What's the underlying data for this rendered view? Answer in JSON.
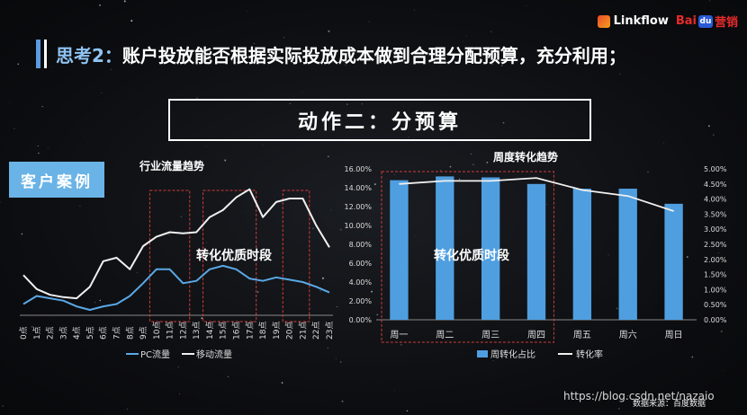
{
  "header": {
    "prefix": "思考2：",
    "title": "账户投放能否根据实际投放成本做到合理分配预算，充分利用；"
  },
  "logos": {
    "linkflow": "Linkflow",
    "baidu_left": "Bai",
    "baidu_mid": "du",
    "baidu_right": "营销"
  },
  "action_box": {
    "text": "动作二：分预算"
  },
  "case_label": "客户案例",
  "colors": {
    "accent": "#6ab3e6",
    "pc_line": "#5aa8e6",
    "mobile_line": "#f0f0f0",
    "bar": "#4f9fe0",
    "highlight_box": "#d23b3b"
  },
  "chart_data": [
    {
      "type": "line",
      "title": "行业流量趋势",
      "annotation": "转化优质时段",
      "categories": [
        "0点",
        "1点",
        "2点",
        "3点",
        "4点",
        "5点",
        "6点",
        "7点",
        "8点",
        "9点",
        "10点",
        "11点",
        "12点",
        "13点",
        "14点",
        "15点",
        "16点",
        "17点",
        "18点",
        "19点",
        "20点",
        "21点",
        "22点",
        "23点"
      ],
      "series": [
        {
          "name": "PC流量",
          "values": [
            0.5,
            1.2,
            1.0,
            0.8,
            0.3,
            0.0,
            0.3,
            0.5,
            1.2,
            2.3,
            3.5,
            3.5,
            2.3,
            2.5,
            3.5,
            3.8,
            3.5,
            2.7,
            2.5,
            2.8,
            2.6,
            2.4,
            2.0,
            1.5
          ]
        },
        {
          "name": "移动流量",
          "values": [
            3.0,
            1.8,
            1.3,
            1.1,
            1.0,
            2.0,
            4.2,
            4.5,
            3.5,
            5.5,
            6.3,
            6.7,
            6.6,
            6.7,
            8.0,
            8.6,
            9.7,
            10.4,
            8.0,
            9.3,
            9.6,
            9.6,
            7.3,
            5.4
          ]
        }
      ],
      "highlight_ranges": [
        [
          10,
          12
        ],
        [
          14,
          17
        ],
        [
          20,
          21
        ]
      ],
      "legend_position": "bottom-left"
    },
    {
      "type": "bar",
      "title": "周度转化趋势",
      "annotation": "转化优质时段",
      "categories": [
        "周一",
        "周二",
        "周三",
        "周四",
        "周五",
        "周六",
        "周日"
      ],
      "series": [
        {
          "name": "周转化占比",
          "type": "bar",
          "axis": "left",
          "values": [
            14.8,
            15.2,
            15.1,
            14.4,
            13.9,
            13.9,
            12.3
          ]
        },
        {
          "name": "转化率",
          "type": "line",
          "axis": "right",
          "values": [
            4.5,
            4.6,
            4.6,
            4.7,
            4.3,
            4.1,
            3.6
          ]
        }
      ],
      "y_left": {
        "ylim": [
          0,
          16
        ],
        "ticks": [
          "0.00%",
          "2.00%",
          "4.00%",
          "6.00%",
          "8.00%",
          "10.00%",
          "12.00%",
          "14.00%",
          "16.00%"
        ]
      },
      "y_right": {
        "ylim": [
          0,
          5
        ],
        "ticks": [
          "0.00%",
          "0.50%",
          "1.00%",
          "1.50%",
          "2.00%",
          "2.50%",
          "3.00%",
          "3.50%",
          "4.00%",
          "4.50%",
          "5.00%"
        ]
      },
      "highlight_categories": [
        0,
        3
      ],
      "legend_position": "bottom-center"
    }
  ],
  "footer": {
    "watermark": "https://blog.csdn.net/nazaio",
    "source": "数据来源：百度数据"
  }
}
